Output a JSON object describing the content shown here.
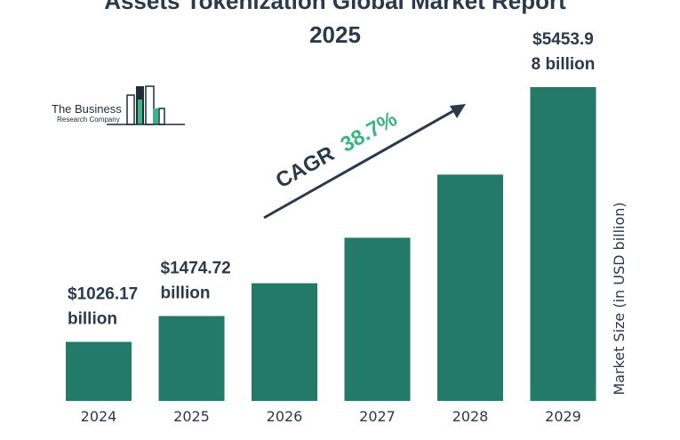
{
  "title_line1": "Assets Tokenization Global Market Report",
  "title_line2": "2025",
  "logo": {
    "line1": "The Business",
    "line2": "Research Company"
  },
  "cagr": {
    "label": "CAGR",
    "value": "38.7%"
  },
  "colors": {
    "bar": "#237a68",
    "accent": "#3cb583",
    "text": "#2b3a4a",
    "logo_dark": "#1f2d3a"
  },
  "chart_data": {
    "type": "bar",
    "categories": [
      "2024",
      "2025",
      "2026",
      "2027",
      "2028",
      "2029"
    ],
    "values": [
      1026.17,
      1474.72,
      2045,
      2836,
      3933,
      5453.98
    ],
    "data_labels": [
      [
        "$1026.17",
        "billion"
      ],
      [
        "$1474.72",
        "billion"
      ],
      null,
      null,
      null,
      [
        "$5453.9",
        "8 billion"
      ]
    ],
    "ylabel": "Market Size (in USD billion)",
    "ylim": [
      0,
      5453.98
    ],
    "grid": false,
    "legend": "none"
  }
}
